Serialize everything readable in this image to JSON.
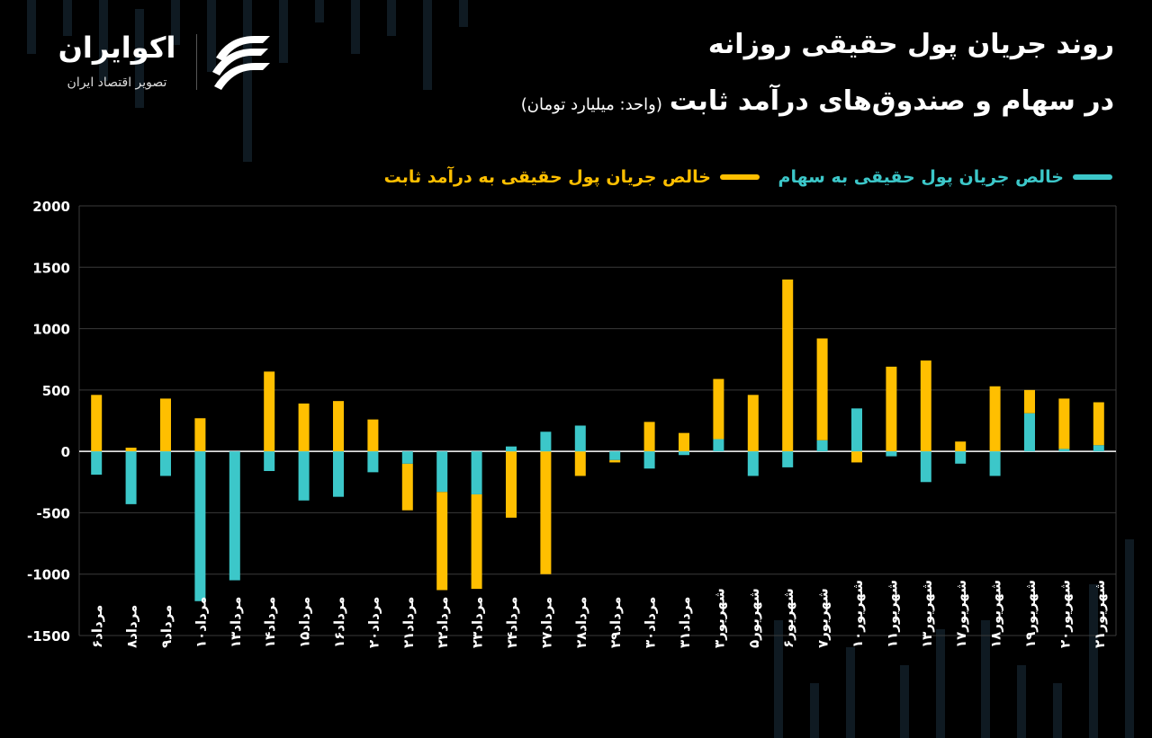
{
  "title_line1": "روند جریان پول حقیقی روزانه",
  "title_line2": "در سهام و صندوق‌های درآمد ثابت",
  "unit_note": "(واحد: میلیارد تومان)",
  "logo": {
    "name": "اکوایران",
    "tagline": "تصویر اقتصاد ایران"
  },
  "colors": {
    "stocks": "#3cc7c9",
    "fixed_income": "#ffbf00",
    "background": "#000000",
    "grid": "#3a3a3a"
  },
  "chart_data": {
    "type": "bar",
    "stacked": true,
    "grid": true,
    "ylim": [
      -1500,
      2000
    ],
    "yticks": [
      "2000",
      "1500",
      "1000",
      "500",
      "0",
      "-500",
      "-1000",
      "-1500"
    ],
    "ytick_values": [
      2000,
      1500,
      1000,
      500,
      0,
      -500,
      -1000,
      -1500
    ],
    "categories": [
      "مرداد۶",
      "مرداد۸",
      "مرداد۹",
      "مرداد۱۰",
      "مرداد۱۳",
      "مرداد۱۴",
      "مرداد۱۵",
      "مرداد۱۶",
      "مرداد۲۰",
      "مرداد۲۱",
      "مرداد۲۲",
      "مرداد۲۳",
      "مرداد۲۴",
      "مرداد۲۷",
      "مرداد۲۸",
      "مرداد۲۹",
      "مرداد۳۰",
      "مرداد۳۱",
      "شهریور۳",
      "شهریور۵",
      "شهریور۶",
      "شهریور۷",
      "شهریور۱۰",
      "شهریور۱۱",
      "شهریور۱۳",
      "شهریور۱۷",
      "شهریور۱۸",
      "شهریور۱۹",
      "شهریور۲۰",
      "شهریور۲۱"
    ],
    "series": [
      {
        "name": "خالص جریان پول حقیقی به سهام",
        "values": [
          -190,
          -430,
          -200,
          -1220,
          -1050,
          -160,
          -400,
          -370,
          -170,
          -100,
          -330,
          -350,
          40,
          160,
          210,
          -70,
          -140,
          -30,
          100,
          -200,
          -130,
          90,
          350,
          -40,
          -250,
          -100,
          -200,
          310,
          20,
          50
        ]
      },
      {
        "name": "خالص جریان پول حقیقی به درآمد ثابت",
        "values": [
          460,
          30,
          430,
          270,
          0,
          650,
          390,
          410,
          260,
          -380,
          -800,
          -770,
          -540,
          -1000,
          -200,
          -20,
          240,
          150,
          490,
          460,
          1400,
          830,
          -90,
          690,
          740,
          80,
          530,
          190,
          410,
          350
        ]
      }
    ]
  }
}
